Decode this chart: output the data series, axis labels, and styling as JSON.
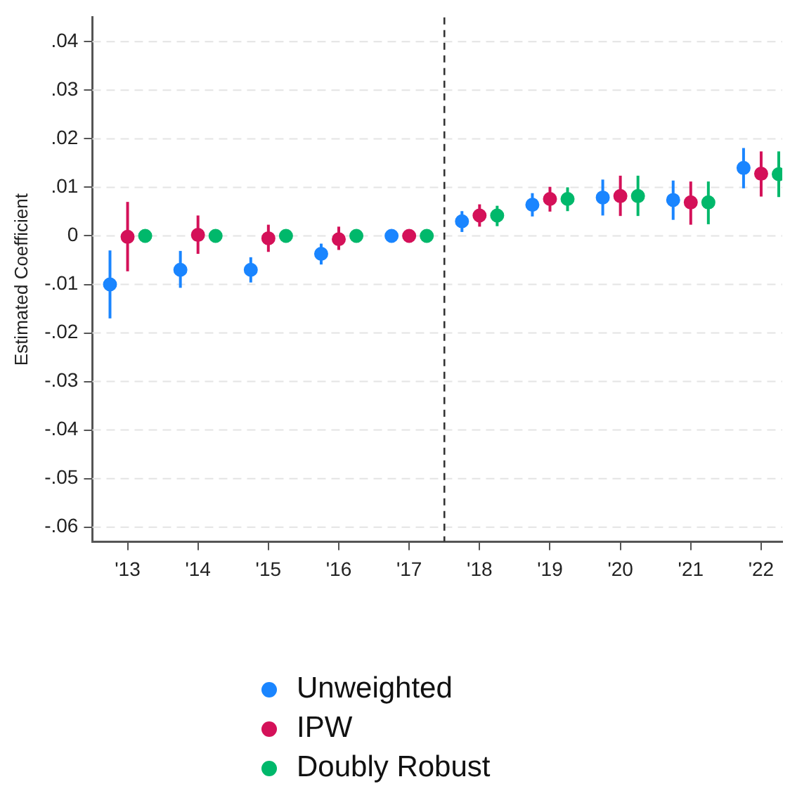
{
  "chart_data": {
    "type": "scatter",
    "ylabel": "Estimated Coefficient",
    "xlim": [
      12.5,
      22.3
    ],
    "ylim": [
      -0.063,
      0.045
    ],
    "xticks": [
      {
        "value": 13,
        "label": "'13"
      },
      {
        "value": 14,
        "label": "'14"
      },
      {
        "value": 15,
        "label": "'15"
      },
      {
        "value": 16,
        "label": "'16"
      },
      {
        "value": 17,
        "label": "'17"
      },
      {
        "value": 18,
        "label": "'18"
      },
      {
        "value": 19,
        "label": "'19"
      },
      {
        "value": 20,
        "label": "'20"
      },
      {
        "value": 21,
        "label": "'21"
      },
      {
        "value": 22,
        "label": "'22"
      }
    ],
    "yticks": [
      {
        "value": -0.06,
        "label": "-.06"
      },
      {
        "value": -0.05,
        "label": "-.05"
      },
      {
        "value": -0.04,
        "label": "-.04"
      },
      {
        "value": -0.03,
        "label": "-.03"
      },
      {
        "value": -0.02,
        "label": "-.02"
      },
      {
        "value": -0.01,
        "label": "-.01"
      },
      0,
      {
        "value": 0.01,
        "label": ".01"
      },
      {
        "value": 0.02,
        "label": ".02"
      },
      {
        "value": 0.03,
        "label": ".03"
      },
      {
        "value": 0.04,
        "label": ".04"
      }
    ],
    "grid": "y",
    "legend": "bottom",
    "marker": "circle",
    "ref_lines": [
      {
        "axis": "x",
        "value": 17.5,
        "color": "#333333",
        "line_style": "dashed"
      }
    ],
    "series": [
      {
        "name": "Unweighted",
        "color": "#1a85ff",
        "x": [
          12.75,
          13.75,
          14.75,
          15.75,
          16.75,
          17.75,
          18.75,
          19.75,
          20.75,
          21.75
        ],
        "values": [
          -0.01,
          -0.007,
          -0.007,
          -0.0037,
          0,
          0.003,
          0.0064,
          0.0079,
          0.0074,
          0.014
        ],
        "errors": [
          [
            -0.017,
            -0.003
          ],
          [
            -0.0107,
            -0.0031
          ],
          [
            -0.0096,
            -0.0044
          ],
          [
            -0.0059,
            -0.0016
          ],
          null,
          [
            0.0008,
            0.0051
          ],
          [
            0.004,
            0.0088
          ],
          [
            0.0042,
            0.0116
          ],
          [
            0.0033,
            0.0114
          ],
          [
            0.0098,
            0.0181
          ]
        ]
      },
      {
        "name": "IPW",
        "color": "#d41159",
        "x": [
          13,
          14,
          15,
          16,
          17,
          18,
          19,
          20,
          21,
          22
        ],
        "values": [
          -0.0002,
          0.0002,
          -0.0005,
          -0.0007,
          0,
          0.0042,
          0.0076,
          0.0082,
          0.0069,
          0.0128
        ],
        "errors": [
          [
            -0.0073,
            0.007
          ],
          [
            -0.0037,
            0.0042
          ],
          [
            -0.0033,
            0.0023
          ],
          [
            -0.0029,
            0.0019
          ],
          null,
          [
            0.0019,
            0.0065
          ],
          [
            0.005,
            0.0101
          ],
          [
            0.0041,
            0.0124
          ],
          [
            0.0023,
            0.0112
          ],
          [
            0.0081,
            0.0174
          ]
        ]
      },
      {
        "name": "Doubly Robust",
        "color": "#00b86b",
        "x": [
          13.25,
          14.25,
          15.25,
          16.25,
          17.25,
          18.25,
          19.25,
          20.25,
          21.25,
          22.25
        ],
        "values": [
          0,
          0,
          0,
          0,
          0,
          0.0042,
          0.0076,
          0.0082,
          0.0069,
          0.0127
        ],
        "errors": [
          null,
          null,
          null,
          null,
          null,
          [
            0.002,
            0.0062
          ],
          [
            0.0051,
            0.01
          ],
          [
            0.0041,
            0.0124
          ],
          [
            0.0024,
            0.0112
          ],
          [
            0.008,
            0.0174
          ]
        ]
      }
    ]
  }
}
